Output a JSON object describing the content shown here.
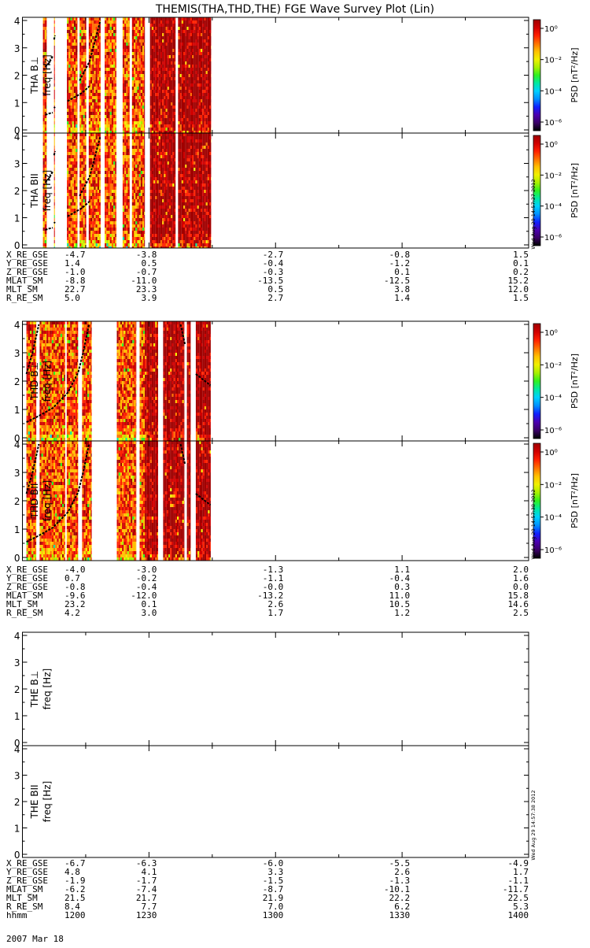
{
  "title": "THEMIS(THA,THD,THE) FGE Wave Survey Plot (Lin)",
  "date": "2007 Mar 18",
  "colorbar": {
    "label": "PSD [nT²/Hz]",
    "ticks": [
      "10⁰",
      "10⁻²",
      "10⁻⁴",
      "10⁻⁶"
    ],
    "colors": [
      "#000000",
      "#3a0066",
      "#4b00b0",
      "#1020ff",
      "#0090ff",
      "#00d0ff",
      "#00e8a0",
      "#30f020",
      "#a8f000",
      "#f0f000",
      "#ffc000",
      "#ff7000",
      "#ff2000",
      "#d00000",
      "#a00000"
    ]
  },
  "stamps": [
    "Wed Aug 29 14:57:27 2012",
    "Wed Aug 29 14:57:38 2012",
    "Wed Aug 29 14:57:38 2012"
  ],
  "chart_data": [
    {
      "type": "heatmap",
      "probe": "THA",
      "panels": [
        {
          "ylabel": "THA B⊥",
          "yunit": "freq [Hz]"
        },
        {
          "ylabel": "THA BII",
          "yunit": "freq [Hz]"
        }
      ],
      "ylim": [
        0,
        4
      ],
      "yticks": [
        "0",
        "1",
        "2",
        "3",
        "4"
      ],
      "xlim": [
        "1200",
        "1400"
      ],
      "data_intervals": [
        [
          1208.1,
          1209.6
        ],
        [
          1212.5,
          1212.8
        ],
        [
          1217.6,
          1221.8
        ],
        [
          1222.6,
          1225.2
        ],
        [
          1226.2,
          1230.9
        ],
        [
          1232.5,
          1237.1
        ],
        [
          1239.6,
          1242.4
        ],
        [
          1243.3,
          1248.4
        ],
        [
          1250.4,
          1260.5
        ],
        [
          1261.5,
          1274.6
        ]
      ],
      "overlay_curves": [
        {
          "x": [
            1209.0,
            1210.5,
            1212.0
          ],
          "y": [
            2.3,
            2.45,
            2.7
          ]
        },
        {
          "x": [
            1209.0,
            1210.5,
            1212.0
          ],
          "y": [
            0.55,
            0.6,
            0.63
          ]
        },
        {
          "x": [
            1212.5,
            1212.9
          ],
          "y": [
            3.3,
            3.45
          ]
        },
        {
          "x": [
            1212.5,
            1212.9
          ],
          "y": [
            0.8,
            0.84
          ]
        },
        {
          "x": [
            1217.8,
            1223.5,
            1226.5
          ],
          "y": [
            1.05,
            1.35,
            1.6
          ]
        },
        {
          "x": [
            1222.6,
            1226.5,
            1230.8
          ],
          "y": [
            1.8,
            2.5,
            4.0
          ]
        }
      ],
      "ephemeris": {
        "X_RE_GSE": [
          "-4.7",
          "-3.8",
          "-2.7",
          "-0.8",
          "1.5"
        ],
        "Y_RE_GSE": [
          "1.4",
          "0.5",
          "-0.4",
          "-1.2",
          "0.1"
        ],
        "Z_RE_GSE": [
          "-1.0",
          "-0.7",
          "-0.3",
          "0.1",
          "0.2"
        ],
        "MLAT_SM": [
          "-8.8",
          "-11.0",
          "-13.5",
          "-12.5",
          "15.2"
        ],
        "MLT_SM": [
          "22.7",
          "23.3",
          "0.5",
          "3.8",
          "12.0"
        ],
        "R_RE_SM": [
          "5.0",
          "3.9",
          "2.7",
          "1.4",
          "1.5"
        ]
      }
    },
    {
      "type": "heatmap",
      "probe": "THD",
      "panels": [
        {
          "ylabel": "THD B⊥",
          "yunit": "freq [Hz]"
        },
        {
          "ylabel": "THD BII",
          "yunit": "freq [Hz]"
        }
      ],
      "ylim": [
        0,
        4
      ],
      "yticks": [
        "0",
        "1",
        "2",
        "3",
        "4"
      ],
      "xlim": [
        "1200",
        "1400"
      ],
      "data_intervals": [
        [
          1201.6,
          1205.5
        ],
        [
          1206.8,
          1216.9
        ],
        [
          1217.5,
          1222.0
        ],
        [
          1223.6,
          1227.4
        ],
        [
          1237.3,
          1245.0
        ],
        [
          1246.3,
          1253.6
        ],
        [
          1255.6,
          1264.0
        ],
        [
          1265.0,
          1266.5
        ],
        [
          1268.5,
          1274.4
        ]
      ],
      "overlay_curves": [
        {
          "x": [
            1201.6,
            1206.0,
            1212.0,
            1218.0,
            1222.0,
            1224.0,
            1226.3
          ],
          "y": [
            0.55,
            0.75,
            1.05,
            1.6,
            2.3,
            3.0,
            4.0
          ]
        },
        {
          "x": [
            1201.6,
            1204.0,
            1206.5
          ],
          "y": [
            2.25,
            3.0,
            4.0
          ]
        },
        {
          "x": [
            1262.5,
            1264.2
          ],
          "y": [
            4.0,
            3.3
          ]
        },
        {
          "x": [
            1268.5,
            1274.3
          ],
          "y": [
            2.25,
            1.85
          ]
        }
      ],
      "ephemeris": {
        "X_RE_GSE": [
          "-4.0",
          "-3.0",
          "-1.3",
          "1.1",
          "2.0"
        ],
        "Y_RE_GSE": [
          "0.7",
          "-0.2",
          "-1.1",
          "-0.4",
          "1.6"
        ],
        "Z_RE_GSE": [
          "-0.8",
          "-0.4",
          "-0.0",
          "0.3",
          "0.0"
        ],
        "MLAT_SM": [
          "-9.6",
          "-12.0",
          "-13.2",
          "11.0",
          "15.8"
        ],
        "MLT_SM": [
          "23.2",
          "0.1",
          "2.6",
          "10.5",
          "14.6"
        ],
        "R_RE_SM": [
          "4.2",
          "3.0",
          "1.7",
          "1.2",
          "2.5"
        ]
      }
    },
    {
      "type": "heatmap",
      "probe": "THE",
      "panels": [
        {
          "ylabel": "THE B⊥",
          "yunit": "freq [Hz]"
        },
        {
          "ylabel": "THE BII",
          "yunit": "freq [Hz]"
        }
      ],
      "ylim": [
        0,
        4
      ],
      "yticks": [
        "0",
        "1",
        "2",
        "3",
        "4"
      ],
      "xlim": [
        "1200",
        "1400"
      ],
      "data_intervals": [],
      "overlay_curves": [],
      "ephemeris": {
        "X_RE_GSE": [
          "-6.7",
          "-6.3",
          "-6.0",
          "-5.5",
          "-4.9"
        ],
        "Y_RE_GSE": [
          "4.8",
          "4.1",
          "3.3",
          "2.6",
          "1.7"
        ],
        "Z_RE_GSE": [
          "-1.9",
          "-1.7",
          "-1.5",
          "-1.3",
          "-1.1"
        ],
        "MLAT_SM": [
          "-6.2",
          "-7.4",
          "-8.7",
          "-10.1",
          "-11.7"
        ],
        "MLT_SM": [
          "21.5",
          "21.7",
          "21.9",
          "22.2",
          "22.5"
        ],
        "R_RE_SM": [
          "8.4",
          "7.7",
          "7.0",
          "6.2",
          "5.3"
        ],
        "hhmm": [
          "1200",
          "1230",
          "1300",
          "1330",
          "1400"
        ]
      }
    }
  ]
}
